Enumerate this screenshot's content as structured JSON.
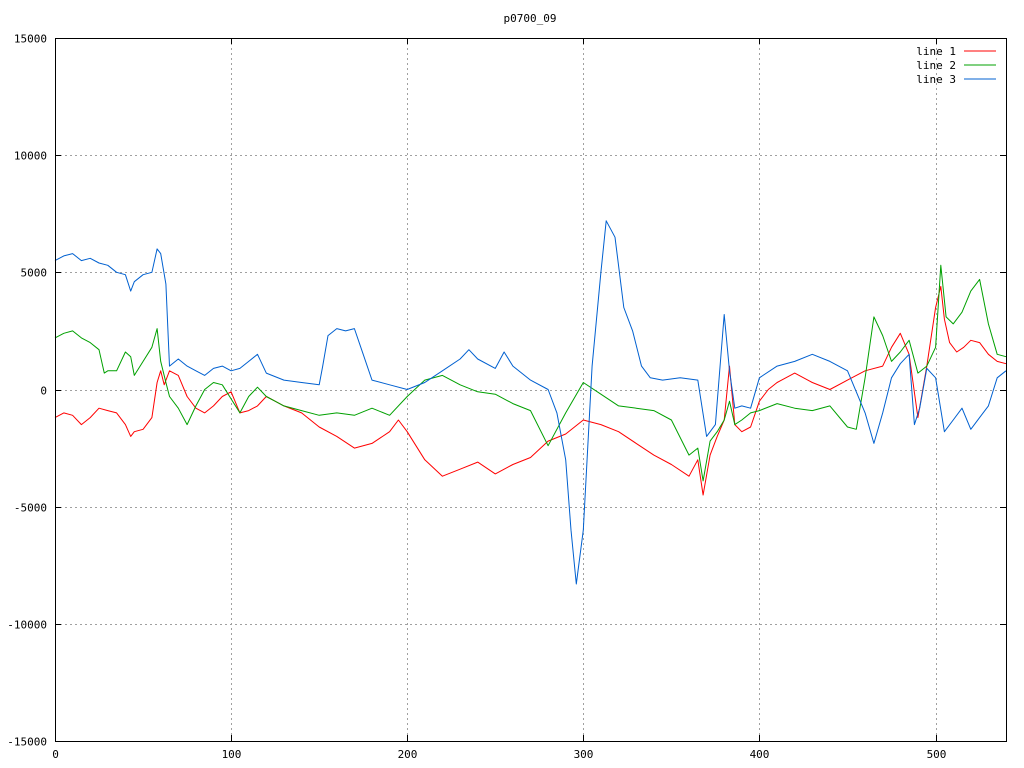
{
  "chart_data": {
    "type": "line",
    "title": "p0700_09",
    "xlabel": "",
    "ylabel": "",
    "xlim": [
      0,
      540
    ],
    "ylim": [
      -15000,
      15000
    ],
    "xticks": [
      0,
      100,
      200,
      300,
      400,
      500
    ],
    "yticks": [
      -15000,
      -10000,
      -5000,
      0,
      5000,
      10000,
      15000
    ],
    "grid": true,
    "legend_position": "top-right",
    "series": [
      {
        "name": "line 1",
        "color": "#ff0000",
        "x": [
          0,
          5,
          10,
          15,
          20,
          25,
          30,
          35,
          40,
          43,
          45,
          50,
          55,
          58,
          60,
          62,
          65,
          70,
          75,
          80,
          85,
          90,
          95,
          100,
          105,
          110,
          115,
          120,
          125,
          130,
          140,
          150,
          160,
          170,
          180,
          190,
          195,
          200,
          210,
          220,
          230,
          240,
          250,
          260,
          270,
          280,
          290,
          300,
          310,
          320,
          330,
          340,
          350,
          360,
          365,
          368,
          372,
          376,
          380,
          383,
          386,
          390,
          395,
          400,
          405,
          410,
          420,
          430,
          440,
          450,
          460,
          470,
          475,
          480,
          485,
          490,
          495,
          500,
          503,
          505,
          508,
          512,
          516,
          520,
          525,
          530,
          535,
          540
        ],
        "values": [
          -1200,
          -1000,
          -1100,
          -1500,
          -1200,
          -800,
          -900,
          -1000,
          -1500,
          -2000,
          -1800,
          -1700,
          -1200,
          300,
          800,
          200,
          800,
          600,
          -300,
          -800,
          -1000,
          -700,
          -300,
          -100,
          -1000,
          -900,
          -700,
          -300,
          -500,
          -700,
          -1000,
          -1600,
          -2000,
          -2500,
          -2300,
          -1800,
          -1300,
          -1800,
          -3000,
          -3700,
          -3400,
          -3100,
          -3600,
          -3200,
          -2900,
          -2200,
          -1900,
          -1300,
          -1500,
          -1800,
          -2300,
          -2800,
          -3200,
          -3700,
          -3000,
          -4500,
          -2800,
          -2000,
          -1300,
          1000,
          -1500,
          -1800,
          -1600,
          -500,
          0,
          300,
          700,
          300,
          0,
          400,
          800,
          1000,
          1800,
          2400,
          1500,
          -1200,
          1000,
          3500,
          4400,
          3000,
          2000,
          1600,
          1800,
          2100,
          2000,
          1500,
          1200,
          1100
        ]
      },
      {
        "name": "line 2",
        "color": "#00a000",
        "x": [
          0,
          5,
          10,
          15,
          20,
          25,
          28,
          30,
          35,
          40,
          43,
          45,
          50,
          55,
          58,
          60,
          63,
          65,
          70,
          75,
          80,
          85,
          90,
          95,
          100,
          105,
          110,
          115,
          120,
          125,
          130,
          140,
          150,
          160,
          170,
          180,
          190,
          200,
          210,
          220,
          230,
          240,
          250,
          260,
          270,
          280,
          290,
          300,
          310,
          320,
          330,
          340,
          350,
          360,
          365,
          368,
          372,
          376,
          380,
          383,
          386,
          390,
          395,
          400,
          410,
          420,
          430,
          440,
          450,
          455,
          460,
          465,
          470,
          475,
          480,
          485,
          490,
          495,
          500,
          503,
          506,
          510,
          515,
          520,
          525,
          530,
          535,
          540
        ],
        "values": [
          2200,
          2400,
          2500,
          2200,
          2000,
          1700,
          700,
          800,
          800,
          1600,
          1400,
          600,
          1200,
          1800,
          2600,
          1200,
          300,
          -300,
          -800,
          -1500,
          -700,
          0,
          300,
          200,
          -400,
          -1000,
          -300,
          100,
          -300,
          -500,
          -700,
          -900,
          -1100,
          -1000,
          -1100,
          -800,
          -1100,
          -300,
          400,
          600,
          200,
          -100,
          -200,
          -600,
          -900,
          -2400,
          -1000,
          300,
          -200,
          -700,
          -800,
          -900,
          -1300,
          -2800,
          -2500,
          -3900,
          -2200,
          -1800,
          -1300,
          -500,
          -1500,
          -1300,
          -1000,
          -900,
          -600,
          -800,
          -900,
          -700,
          -1600,
          -1700,
          500,
          3100,
          2300,
          1200,
          1600,
          2100,
          700,
          1000,
          1800,
          5300,
          3100,
          2800,
          3300,
          4200,
          4700,
          2800,
          1500,
          1400
        ]
      },
      {
        "name": "line 3",
        "color": "#0060d0",
        "x": [
          0,
          5,
          10,
          15,
          20,
          25,
          30,
          35,
          40,
          43,
          45,
          50,
          55,
          58,
          60,
          63,
          65,
          70,
          75,
          80,
          85,
          90,
          95,
          100,
          105,
          110,
          115,
          120,
          130,
          140,
          150,
          152,
          155,
          160,
          165,
          170,
          175,
          180,
          190,
          200,
          210,
          220,
          230,
          235,
          240,
          250,
          255,
          260,
          270,
          280,
          285,
          290,
          293,
          296,
          300,
          305,
          310,
          313,
          318,
          323,
          328,
          333,
          338,
          345,
          355,
          365,
          370,
          375,
          380,
          383,
          386,
          390,
          395,
          400,
          410,
          420,
          430,
          440,
          450,
          460,
          465,
          470,
          475,
          480,
          485,
          488,
          491,
          495,
          500,
          505,
          510,
          515,
          520,
          525,
          530,
          535,
          540
        ],
        "values": [
          5500,
          5700,
          5800,
          5500,
          5600,
          5400,
          5300,
          5000,
          4900,
          4200,
          4600,
          4900,
          5000,
          6000,
          5800,
          4500,
          1000,
          1300,
          1000,
          800,
          600,
          900,
          1000,
          800,
          900,
          1200,
          1500,
          700,
          400,
          300,
          200,
          1000,
          2300,
          2600,
          2500,
          2600,
          1500,
          400,
          200,
          0,
          300,
          800,
          1300,
          1700,
          1300,
          900,
          1600,
          1000,
          400,
          0,
          -1000,
          -3000,
          -6000,
          -8300,
          -6000,
          1000,
          5000,
          7200,
          6500,
          3500,
          2500,
          1000,
          500,
          400,
          500,
          400,
          -2000,
          -1500,
          3200,
          800,
          -800,
          -700,
          -800,
          500,
          1000,
          1200,
          1500,
          1200,
          800,
          -1000,
          -2300,
          -1000,
          500,
          1100,
          1500,
          -1500,
          -800,
          900,
          500,
          -1800,
          -1300,
          -800,
          -1700,
          -1200,
          -700,
          500,
          800
        ]
      }
    ]
  }
}
